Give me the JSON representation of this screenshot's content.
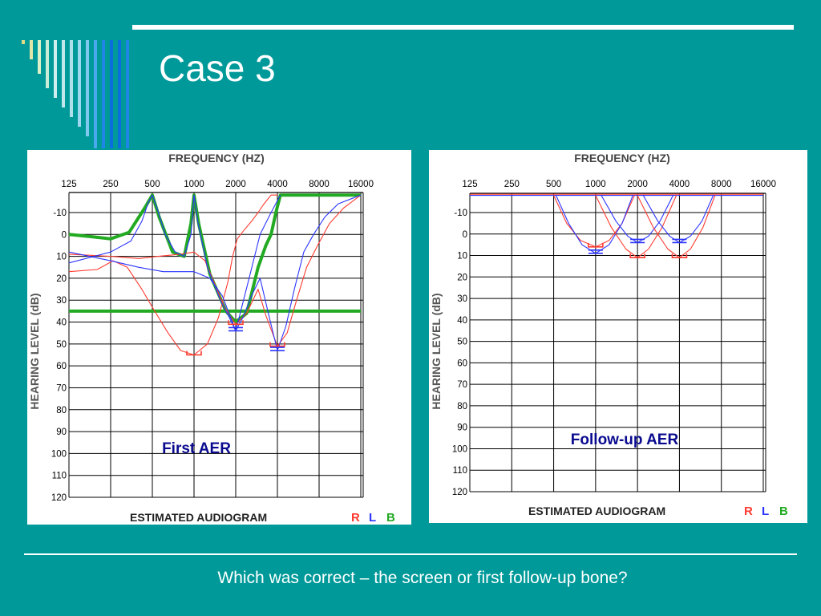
{
  "slide": {
    "title": "Case 3",
    "question": "Which was correct – the screen or first follow-up bone?"
  },
  "colors": {
    "background": "#009999",
    "right_ear": "#ff3b30",
    "left_ear": "#2b35ff",
    "both": "#22aa22",
    "annotation": "#0a0a8f"
  },
  "chart_data": [
    {
      "type": "line",
      "annotation": "First AER",
      "title": "FREQUENCY (HZ)",
      "ylabel": "HEARING LEVEL (dB)",
      "xlabel": "ESTIMATED AUDIOGRAM",
      "legend": [
        "R",
        "L",
        "B"
      ],
      "legend_position": "bottom-right",
      "y_inverted": true,
      "ylim": [
        -15,
        122
      ],
      "x_ticks": [
        "125",
        "250",
        "500",
        "1000",
        "2000",
        "4000",
        "8000",
        "16000"
      ],
      "y_ticks": [
        "-10",
        "0",
        "10",
        "20",
        "30",
        "40",
        "50",
        "60",
        "70",
        "80",
        "90",
        "100",
        "110",
        "120"
      ],
      "grid": true,
      "estimated_thresholds": [
        {
          "ear": "R",
          "freq_hz": 1000,
          "level_db": 55
        },
        {
          "ear": "R",
          "freq_hz": 2000,
          "level_db": 41
        },
        {
          "ear": "L",
          "freq_hz": 2000,
          "level_db": 44
        },
        {
          "ear": "R",
          "freq_hz": 4000,
          "level_db": 51
        },
        {
          "ear": "L",
          "freq_hz": 4000,
          "level_db": 53
        }
      ],
      "series": [
        {
          "ear": "B",
          "points": [
            [
              125,
              0
            ],
            [
              180,
              1
            ],
            [
              250,
              2
            ],
            [
              340,
              -1
            ],
            [
              440,
              -12
            ],
            [
              500,
              -18
            ],
            [
              560,
              -8
            ],
            [
              700,
              8
            ],
            [
              850,
              10
            ],
            [
              950,
              -5
            ],
            [
              1000,
              -18
            ],
            [
              1080,
              -5
            ],
            [
              1300,
              18
            ],
            [
              1700,
              35
            ],
            [
              2000,
              40
            ],
            [
              2400,
              36
            ],
            [
              2900,
              15
            ],
            [
              3300,
              5
            ],
            [
              3600,
              0
            ],
            [
              3900,
              -10
            ],
            [
              4200,
              -18
            ],
            [
              16000,
              -18
            ]
          ]
        },
        {
          "ear": "B",
          "points": [
            [
              125,
              35
            ],
            [
              16000,
              35
            ]
          ]
        },
        {
          "ear": "R",
          "points": [
            [
              125,
              17
            ],
            [
              200,
              16
            ],
            [
              260,
              12
            ],
            [
              330,
              15
            ],
            [
              420,
              25
            ],
            [
              520,
              35
            ],
            [
              650,
              45
            ],
            [
              800,
              53
            ],
            [
              1000,
              55
            ],
            [
              1250,
              50
            ],
            [
              1500,
              38
            ],
            [
              1750,
              22
            ],
            [
              1900,
              10
            ],
            [
              2050,
              2
            ],
            [
              2300,
              -2
            ],
            [
              2600,
              -6
            ],
            [
              2900,
              -10
            ],
            [
              3200,
              -14
            ],
            [
              3600,
              -18
            ],
            [
              4000,
              -18
            ]
          ]
        },
        {
          "ear": "R",
          "points": [
            [
              125,
              9
            ],
            [
              250,
              10
            ],
            [
              400,
              11
            ],
            [
              550,
              10
            ],
            [
              800,
              9
            ],
            [
              1000,
              8
            ],
            [
              1200,
              12
            ],
            [
              1400,
              22
            ],
            [
              1650,
              33
            ],
            [
              2000,
              41
            ],
            [
              2400,
              36
            ],
            [
              2900,
              25
            ],
            [
              3300,
              37
            ],
            [
              4000,
              51
            ],
            [
              4700,
              45
            ],
            [
              5500,
              30
            ],
            [
              6500,
              15
            ],
            [
              7800,
              5
            ],
            [
              9500,
              -5
            ],
            [
              12000,
              -12
            ],
            [
              16000,
              -18
            ]
          ]
        },
        {
          "ear": "L",
          "points": [
            [
              125,
              13
            ],
            [
              250,
              8
            ],
            [
              350,
              3
            ],
            [
              420,
              -6
            ],
            [
              470,
              -15
            ],
            [
              500,
              -18
            ],
            [
              540,
              -12
            ],
            [
              620,
              0
            ],
            [
              730,
              8
            ],
            [
              850,
              10
            ],
            [
              950,
              0
            ],
            [
              1000,
              -18
            ],
            [
              1070,
              -5
            ],
            [
              1250,
              15
            ],
            [
              1550,
              30
            ],
            [
              1800,
              38
            ],
            [
              2000,
              44
            ],
            [
              2250,
              38
            ],
            [
              2600,
              28
            ],
            [
              3000,
              20
            ],
            [
              3500,
              38
            ],
            [
              4000,
              53
            ],
            [
              4600,
              42
            ],
            [
              5300,
              25
            ],
            [
              6200,
              8
            ],
            [
              7300,
              0
            ],
            [
              8800,
              -8
            ],
            [
              11000,
              -14
            ],
            [
              16000,
              -18
            ]
          ]
        },
        {
          "ear": "L",
          "points": [
            [
              125,
              8
            ],
            [
              250,
              12
            ],
            [
              400,
              15
            ],
            [
              600,
              17
            ],
            [
              800,
              17
            ],
            [
              1000,
              17
            ],
            [
              1300,
              20
            ],
            [
              1600,
              28
            ],
            [
              2000,
              44
            ],
            [
              2500,
              20
            ],
            [
              3000,
              0
            ],
            [
              3600,
              -10
            ],
            [
              4200,
              -18
            ]
          ]
        }
      ]
    },
    {
      "type": "line",
      "annotation": "Follow-up AER",
      "title": "FREQUENCY (HZ)",
      "ylabel": "HEARING LEVEL (dB)",
      "xlabel": "ESTIMATED AUDIOGRAM",
      "legend": [
        "R",
        "L",
        "B"
      ],
      "legend_position": "bottom-right",
      "y_inverted": true,
      "ylim": [
        -15,
        122
      ],
      "x_ticks": [
        "125",
        "250",
        "500",
        "1000",
        "2000",
        "4000",
        "8000",
        "16000"
      ],
      "y_ticks": [
        "-10",
        "0",
        "10",
        "20",
        "30",
        "40",
        "50",
        "60",
        "70",
        "80",
        "90",
        "100",
        "110",
        "120"
      ],
      "grid": true,
      "estimated_thresholds": [
        {
          "ear": "R",
          "freq_hz": 1000,
          "level_db": 6
        },
        {
          "ear": "L",
          "freq_hz": 1000,
          "level_db": 9
        },
        {
          "ear": "L",
          "freq_hz": 2000,
          "level_db": 4
        },
        {
          "ear": "R",
          "freq_hz": 2000,
          "level_db": 11
        },
        {
          "ear": "L",
          "freq_hz": 4000,
          "level_db": 4
        },
        {
          "ear": "R",
          "freq_hz": 4000,
          "level_db": 11
        }
      ],
      "series": [
        {
          "ear": "L",
          "points": [
            [
              125,
              -18
            ],
            [
              16000,
              -18
            ]
          ]
        },
        {
          "ear": "R",
          "points": [
            [
              125,
              -18.5
            ],
            [
              16000,
              -18.5
            ]
          ]
        },
        {
          "ear": "R",
          "points": [
            [
              500,
              -18
            ],
            [
              620,
              -5
            ],
            [
              780,
              3
            ],
            [
              1000,
              6
            ],
            [
              1250,
              3
            ],
            [
              1550,
              -5
            ],
            [
              1900,
              -18
            ]
          ]
        },
        {
          "ear": "L",
          "points": [
            [
              520,
              -18
            ],
            [
              640,
              -5
            ],
            [
              800,
              5
            ],
            [
              1000,
              9
            ],
            [
              1250,
              5
            ],
            [
              1550,
              -5
            ],
            [
              1850,
              -18
            ]
          ]
        },
        {
          "ear": "L",
          "points": [
            [
              1100,
              -18
            ],
            [
              1400,
              -6
            ],
            [
              1700,
              1
            ],
            [
              2000,
              4
            ],
            [
              2400,
              1
            ],
            [
              2900,
              -6
            ],
            [
              3600,
              -18
            ]
          ]
        },
        {
          "ear": "R",
          "points": [
            [
              1000,
              -18
            ],
            [
              1300,
              -3
            ],
            [
              1650,
              7
            ],
            [
              2000,
              11
            ],
            [
              2400,
              7
            ],
            [
              3000,
              -3
            ],
            [
              3800,
              -18
            ]
          ]
        },
        {
          "ear": "L",
          "points": [
            [
              2200,
              -18
            ],
            [
              2800,
              -6
            ],
            [
              3400,
              1
            ],
            [
              4000,
              4
            ],
            [
              4800,
              1
            ],
            [
              5800,
              -6
            ],
            [
              7000,
              -18
            ]
          ]
        },
        {
          "ear": "R",
          "points": [
            [
              2000,
              -18
            ],
            [
              2600,
              -3
            ],
            [
              3300,
              7
            ],
            [
              4000,
              11
            ],
            [
              4800,
              7
            ],
            [
              5900,
              -3
            ],
            [
              7200,
              -18
            ]
          ]
        }
      ]
    }
  ]
}
